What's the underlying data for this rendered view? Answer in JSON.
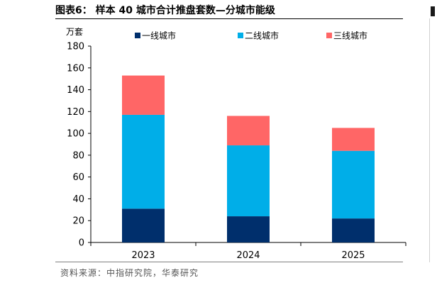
{
  "title": "图表6： 样本 40 城市合计推盘套数—分城市能级",
  "source": "资料来源：中指研究院，华泰研究",
  "colors": {
    "tier1": "#002f6c",
    "tier2": "#00aee8",
    "tier3": "#ff6666"
  },
  "chart_data": {
    "type": "bar",
    "stacked": true,
    "categories": [
      "2023",
      "2024",
      "2025"
    ],
    "series": [
      {
        "name": "一线城市",
        "values": [
          31,
          24,
          22
        ]
      },
      {
        "name": "二线城市",
        "values": [
          86,
          65,
          62
        ]
      },
      {
        "name": "三线城市",
        "values": [
          36,
          27,
          21
        ]
      }
    ],
    "ylabel": "万套",
    "xlabel": "",
    "ylim": [
      0,
      180
    ],
    "yticks": [
      0,
      20,
      40,
      60,
      80,
      100,
      120,
      140,
      160,
      180
    ],
    "legend_position": "top",
    "grid": false
  }
}
